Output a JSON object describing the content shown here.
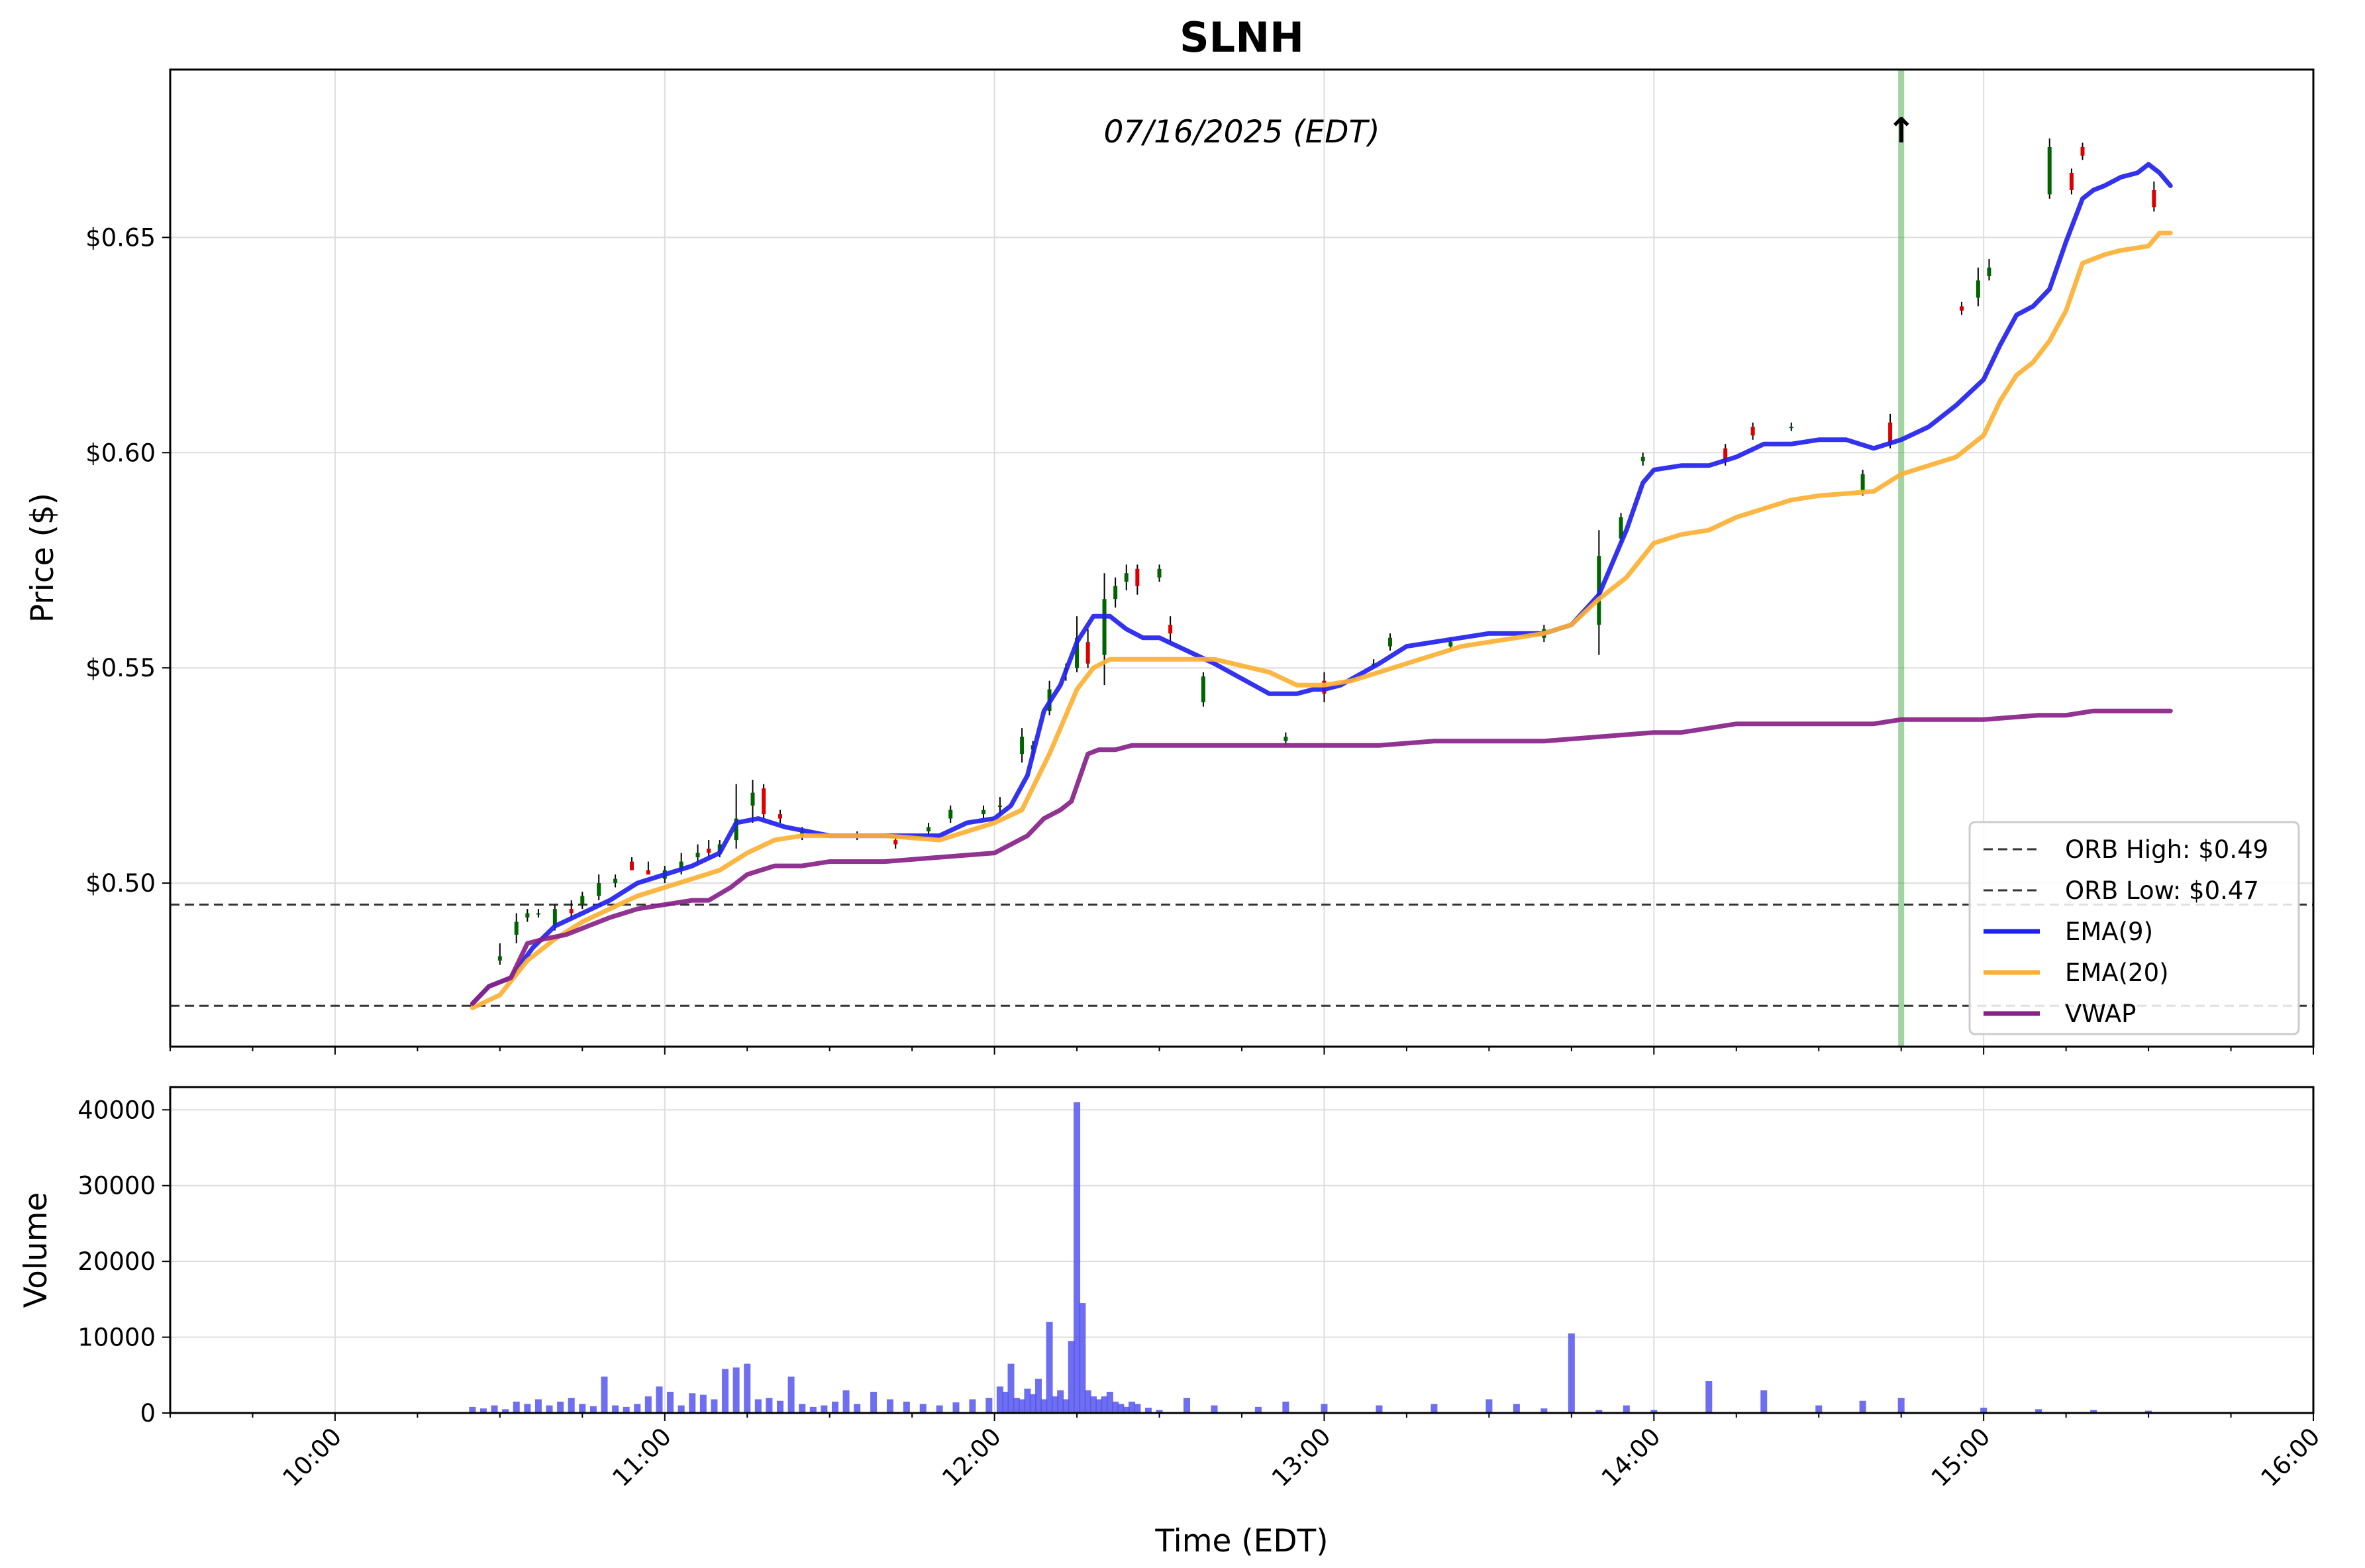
{
  "chart_data": [
    {
      "type": "line",
      "title": "SLNH",
      "subtitle": "07/16/2025 (EDT)",
      "ylabel": "Price ($)",
      "ylim": [
        0.462,
        0.689
      ],
      "xlim": [
        "09:30",
        "16:00"
      ],
      "y_ticks": [
        "$0.50",
        "$0.55",
        "$0.60",
        "$0.65"
      ],
      "y_tick_values": [
        0.5,
        0.55,
        0.6,
        0.65
      ],
      "grid": true,
      "legend_position": "lower-right",
      "reference_lines": [
        {
          "name": "ORB High: $0.49",
          "value": 0.495,
          "style": "dashed",
          "color": "#333333"
        },
        {
          "name": "ORB Low: $0.47",
          "value": 0.4715,
          "style": "dashed",
          "color": "#333333"
        }
      ],
      "signal": {
        "time": "14:45",
        "marker": "↑",
        "color": "#2ca02c",
        "arrow_color": "#006400"
      },
      "series": [
        {
          "name": "EMA(9)",
          "color": "#2222ee",
          "x": [
            "10:25",
            "10:28",
            "10:32",
            "10:36",
            "10:40",
            "10:45",
            "10:50",
            "10:55",
            "11:00",
            "11:05",
            "11:10",
            "11:13",
            "11:17",
            "11:22",
            "11:26",
            "11:30",
            "11:40",
            "11:50",
            "11:55",
            "12:00",
            "12:03",
            "12:06",
            "12:09",
            "12:12",
            "12:15",
            "12:18",
            "12:21",
            "12:24",
            "12:27",
            "12:30",
            "12:35",
            "12:40",
            "12:50",
            "12:55",
            "12:58",
            "13:00",
            "13:03",
            "13:10",
            "13:15",
            "13:20",
            "13:25",
            "13:30",
            "13:35",
            "13:40",
            "13:45",
            "13:50",
            "13:55",
            "13:58",
            "14:00",
            "14:05",
            "14:10",
            "14:15",
            "14:20",
            "14:25",
            "14:30",
            "14:35",
            "14:40",
            "14:45",
            "14:50",
            "14:55",
            "15:00",
            "15:03",
            "15:06",
            "15:09",
            "15:12",
            "15:15",
            "15:18",
            "15:20",
            "15:22",
            "15:25",
            "15:28",
            "15:30",
            "15:32",
            "15:34"
          ],
          "values": [
            0.472,
            0.476,
            0.478,
            0.485,
            0.49,
            0.493,
            0.496,
            0.5,
            0.502,
            0.504,
            0.507,
            0.514,
            0.515,
            0.513,
            0.512,
            0.511,
            0.511,
            0.511,
            0.514,
            0.515,
            0.518,
            0.525,
            0.54,
            0.546,
            0.556,
            0.562,
            0.562,
            0.559,
            0.557,
            0.557,
            0.554,
            0.551,
            0.544,
            0.544,
            0.545,
            0.545,
            0.546,
            0.551,
            0.555,
            0.556,
            0.557,
            0.558,
            0.558,
            0.558,
            0.56,
            0.567,
            0.582,
            0.593,
            0.596,
            0.597,
            0.597,
            0.599,
            0.602,
            0.602,
            0.603,
            0.603,
            0.601,
            0.603,
            0.606,
            0.611,
            0.617,
            0.625,
            0.632,
            0.634,
            0.638,
            0.649,
            0.659,
            0.661,
            0.662,
            0.664,
            0.665,
            0.667,
            0.665,
            0.662
          ]
        },
        {
          "name": "EMA(20)",
          "color": "#fcb033",
          "x": [
            "10:25",
            "10:30",
            "10:35",
            "10:40",
            "10:45",
            "10:50",
            "10:55",
            "11:00",
            "11:05",
            "11:10",
            "11:15",
            "11:20",
            "11:25",
            "11:30",
            "11:40",
            "11:50",
            "11:55",
            "12:00",
            "12:05",
            "12:10",
            "12:12",
            "12:15",
            "12:18",
            "12:21",
            "12:24",
            "12:30",
            "12:40",
            "12:50",
            "12:55",
            "13:00",
            "13:05",
            "13:10",
            "13:15",
            "13:20",
            "13:25",
            "13:30",
            "13:35",
            "13:40",
            "13:45",
            "13:50",
            "13:55",
            "14:00",
            "14:05",
            "14:10",
            "14:15",
            "14:20",
            "14:25",
            "14:30",
            "14:40",
            "14:45",
            "14:50",
            "14:55",
            "15:00",
            "15:03",
            "15:06",
            "15:09",
            "15:12",
            "15:15",
            "15:18",
            "15:20",
            "15:22",
            "15:25",
            "15:30",
            "15:32",
            "15:34"
          ],
          "values": [
            0.471,
            0.474,
            0.482,
            0.487,
            0.491,
            0.494,
            0.497,
            0.499,
            0.501,
            0.503,
            0.507,
            0.51,
            0.511,
            0.511,
            0.511,
            0.51,
            0.512,
            0.514,
            0.517,
            0.53,
            0.536,
            0.545,
            0.55,
            0.552,
            0.552,
            0.552,
            0.552,
            0.549,
            0.546,
            0.546,
            0.547,
            0.549,
            0.551,
            0.553,
            0.555,
            0.556,
            0.557,
            0.558,
            0.56,
            0.566,
            0.571,
            0.579,
            0.581,
            0.582,
            0.585,
            0.587,
            0.589,
            0.59,
            0.591,
            0.595,
            0.597,
            0.599,
            0.604,
            0.612,
            0.618,
            0.621,
            0.626,
            0.633,
            0.644,
            0.645,
            0.646,
            0.647,
            0.648,
            0.651,
            0.651
          ]
        },
        {
          "name": "VWAP",
          "color": "#882288",
          "x": [
            "10:25",
            "10:28",
            "10:32",
            "10:35",
            "10:38",
            "10:42",
            "10:46",
            "10:50",
            "10:55",
            "11:00",
            "11:05",
            "11:08",
            "11:12",
            "11:15",
            "11:20",
            "11:25",
            "11:30",
            "11:40",
            "11:50",
            "12:00",
            "12:03",
            "12:06",
            "12:09",
            "12:12",
            "12:14",
            "12:17",
            "12:19",
            "12:22",
            "12:25",
            "12:30",
            "12:40",
            "12:50",
            "13:00",
            "13:10",
            "13:20",
            "13:30",
            "13:40",
            "13:50",
            "14:00",
            "14:05",
            "14:10",
            "14:15",
            "14:20",
            "14:30",
            "14:40",
            "14:45",
            "14:50",
            "15:00",
            "15:10",
            "15:15",
            "15:20",
            "15:34"
          ],
          "values": [
            0.472,
            0.476,
            0.478,
            0.486,
            0.487,
            0.488,
            0.49,
            0.492,
            0.494,
            0.495,
            0.496,
            0.496,
            0.499,
            0.502,
            0.504,
            0.504,
            0.505,
            0.505,
            0.506,
            0.507,
            0.509,
            0.511,
            0.515,
            0.517,
            0.519,
            0.53,
            0.531,
            0.531,
            0.532,
            0.532,
            0.532,
            0.532,
            0.532,
            0.532,
            0.533,
            0.533,
            0.533,
            0.534,
            0.535,
            0.535,
            0.536,
            0.537,
            0.537,
            0.537,
            0.537,
            0.538,
            0.538,
            0.538,
            0.539,
            0.539,
            0.54,
            0.54
          ]
        }
      ],
      "candles": [
        [
          "10:30",
          0.482,
          0.486,
          0.481,
          0.483
        ],
        [
          "10:33",
          0.488,
          0.493,
          0.486,
          0.491
        ],
        [
          "10:35",
          0.492,
          0.494,
          0.491,
          0.493
        ],
        [
          "10:37",
          0.493,
          0.494,
          0.492,
          0.493
        ],
        [
          "10:40",
          0.49,
          0.495,
          0.489,
          0.494
        ],
        [
          "10:43",
          0.494,
          0.496,
          0.492,
          0.493
        ],
        [
          "10:45",
          0.495,
          0.498,
          0.494,
          0.497
        ],
        [
          "10:48",
          0.497,
          0.502,
          0.496,
          0.5
        ],
        [
          "10:51",
          0.5,
          0.502,
          0.499,
          0.501
        ],
        [
          "10:54",
          0.505,
          0.506,
          0.503,
          0.503
        ],
        [
          "10:57",
          0.503,
          0.505,
          0.502,
          0.502
        ],
        [
          "11:00",
          0.501,
          0.504,
          0.5,
          0.503
        ],
        [
          "11:03",
          0.503,
          0.507,
          0.502,
          0.505
        ],
        [
          "11:06",
          0.506,
          0.509,
          0.505,
          0.507
        ],
        [
          "11:08",
          0.508,
          0.51,
          0.506,
          0.507
        ],
        [
          "11:10",
          0.507,
          0.51,
          0.506,
          0.509
        ],
        [
          "11:13",
          0.51,
          0.523,
          0.508,
          0.515
        ],
        [
          "11:16",
          0.518,
          0.524,
          0.514,
          0.521
        ],
        [
          "11:18",
          0.522,
          0.523,
          0.515,
          0.516
        ],
        [
          "11:21",
          0.516,
          0.517,
          0.514,
          0.515
        ],
        [
          "11:25",
          0.511,
          0.513,
          0.51,
          0.512
        ],
        [
          "11:35",
          0.511,
          0.512,
          0.51,
          0.511
        ],
        [
          "11:42",
          0.51,
          0.511,
          0.508,
          0.509
        ],
        [
          "11:48",
          0.512,
          0.514,
          0.511,
          0.513
        ],
        [
          "11:52",
          0.515,
          0.518,
          0.514,
          0.517
        ],
        [
          "11:58",
          0.516,
          0.518,
          0.515,
          0.517
        ],
        [
          "12:01",
          0.518,
          0.52,
          0.516,
          0.518
        ],
        [
          "12:05",
          0.53,
          0.536,
          0.528,
          0.534
        ],
        [
          "12:07",
          0.531,
          0.533,
          0.529,
          0.532
        ],
        [
          "12:10",
          0.54,
          0.547,
          0.539,
          0.545
        ],
        [
          "12:13",
          0.549,
          0.551,
          0.547,
          0.55
        ],
        [
          "12:15",
          0.55,
          0.562,
          0.549,
          0.557
        ],
        [
          "12:17",
          0.556,
          0.559,
          0.55,
          0.551
        ],
        [
          "12:20",
          0.553,
          0.572,
          0.546,
          0.566
        ],
        [
          "12:22",
          0.566,
          0.571,
          0.564,
          0.569
        ],
        [
          "12:24",
          0.57,
          0.574,
          0.568,
          0.572
        ],
        [
          "12:26",
          0.573,
          0.574,
          0.567,
          0.569
        ],
        [
          "12:30",
          0.571,
          0.574,
          0.57,
          0.573
        ],
        [
          "12:32",
          0.56,
          0.562,
          0.556,
          0.558
        ],
        [
          "12:38",
          0.542,
          0.549,
          0.541,
          0.548
        ],
        [
          "12:53",
          0.533,
          0.535,
          0.532,
          0.534
        ],
        [
          "13:00",
          0.547,
          0.549,
          0.542,
          0.544
        ],
        [
          "13:09",
          0.551,
          0.552,
          0.55,
          0.551
        ],
        [
          "13:12",
          0.555,
          0.558,
          0.554,
          0.557
        ],
        [
          "13:23",
          0.555,
          0.557,
          0.554,
          0.556
        ],
        [
          "13:40",
          0.557,
          0.56,
          0.556,
          0.559
        ],
        [
          "13:50",
          0.56,
          0.582,
          0.553,
          0.576
        ],
        [
          "13:54",
          0.58,
          0.586,
          0.579,
          0.585
        ],
        [
          "13:58",
          0.598,
          0.6,
          0.597,
          0.599
        ],
        [
          "14:13",
          0.601,
          0.602,
          0.597,
          0.598
        ],
        [
          "14:18",
          0.606,
          0.607,
          0.603,
          0.604
        ],
        [
          "14:25",
          0.606,
          0.607,
          0.605,
          0.606
        ],
        [
          "14:38",
          0.591,
          0.596,
          0.59,
          0.595
        ],
        [
          "14:43",
          0.607,
          0.609,
          0.601,
          0.602
        ],
        [
          "14:56",
          0.634,
          0.635,
          0.632,
          0.633
        ],
        [
          "14:59",
          0.636,
          0.643,
          0.634,
          0.64
        ],
        [
          "15:01",
          0.641,
          0.645,
          0.64,
          0.643
        ],
        [
          "15:12",
          0.66,
          0.673,
          0.659,
          0.671
        ],
        [
          "15:16",
          0.665,
          0.666,
          0.66,
          0.661
        ],
        [
          "15:18",
          0.671,
          0.672,
          0.668,
          0.669
        ],
        [
          "15:31",
          0.661,
          0.663,
          0.656,
          0.657
        ]
      ]
    },
    {
      "type": "bar",
      "ylabel": "Volume",
      "xlabel": "Time (EDT)",
      "ylim": [
        0,
        43000
      ],
      "y_ticks": [
        "0",
        "10000",
        "20000",
        "30000",
        "40000"
      ],
      "y_tick_values": [
        0,
        10000,
        20000,
        30000,
        40000
      ],
      "x_ticks": [
        "10:00",
        "11:00",
        "12:00",
        "13:00",
        "14:00",
        "15:00",
        "16:00"
      ],
      "color": "#5555ee",
      "grid": true,
      "x": [
        "10:25",
        "10:27",
        "10:29",
        "10:31",
        "10:33",
        "10:35",
        "10:37",
        "10:39",
        "10:41",
        "10:43",
        "10:45",
        "10:47",
        "10:49",
        "10:51",
        "10:53",
        "10:55",
        "10:57",
        "10:59",
        "11:01",
        "11:03",
        "11:05",
        "11:07",
        "11:09",
        "11:11",
        "11:13",
        "11:15",
        "11:17",
        "11:19",
        "11:21",
        "11:23",
        "11:25",
        "11:27",
        "11:29",
        "11:31",
        "11:33",
        "11:35",
        "11:38",
        "11:41",
        "11:44",
        "11:47",
        "11:50",
        "11:53",
        "11:56",
        "11:59",
        "12:01",
        "12:02",
        "12:03",
        "12:04",
        "12:05",
        "12:06",
        "12:07",
        "12:08",
        "12:09",
        "12:10",
        "12:11",
        "12:12",
        "12:13",
        "12:14",
        "12:15",
        "12:16",
        "12:17",
        "12:18",
        "12:19",
        "12:20",
        "12:21",
        "12:22",
        "12:23",
        "12:24",
        "12:25",
        "12:26",
        "12:28",
        "12:30",
        "12:35",
        "12:40",
        "12:48",
        "12:53",
        "13:00",
        "13:10",
        "13:20",
        "13:30",
        "13:35",
        "13:40",
        "13:45",
        "13:50",
        "13:55",
        "14:00",
        "14:10",
        "14:20",
        "14:30",
        "14:38",
        "14:45",
        "15:00",
        "15:10",
        "15:20",
        "15:30"
      ],
      "values": [
        800,
        600,
        1000,
        500,
        1500,
        1200,
        1800,
        1000,
        1500,
        2000,
        1200,
        900,
        4800,
        1000,
        800,
        1200,
        2200,
        3500,
        2800,
        1000,
        2600,
        2400,
        1800,
        5800,
        6000,
        6500,
        1800,
        2000,
        1600,
        4800,
        1200,
        800,
        1000,
        1500,
        3000,
        1200,
        2800,
        1800,
        1500,
        1200,
        1000,
        1400,
        1800,
        2000,
        3500,
        2800,
        6500,
        2000,
        1800,
        3200,
        2500,
        4500,
        1800,
        12000,
        2200,
        3000,
        1800,
        9500,
        41000,
        14500,
        3000,
        2200,
        1800,
        2200,
        2800,
        1500,
        1200,
        800,
        1500,
        1200,
        700,
        400,
        2000,
        1000,
        800,
        1500,
        1200,
        1000,
        1200,
        1800,
        1200,
        600,
        10500,
        400,
        1000,
        400,
        4200,
        3000,
        1000,
        1600,
        2000,
        700,
        500,
        400,
        300
      ]
    }
  ]
}
